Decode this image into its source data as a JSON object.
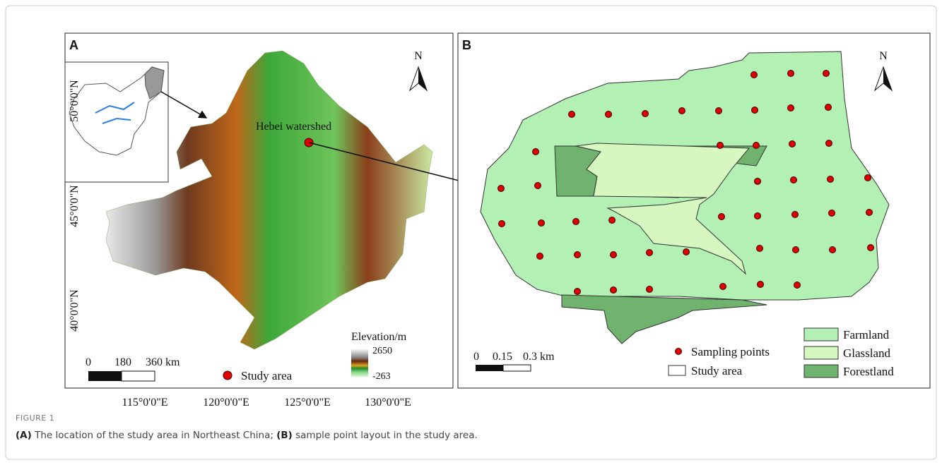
{
  "panel_a": {
    "label": "A",
    "north": "N",
    "latitudes": [
      "50°0'0\"N",
      "45°0'0\"N",
      "40°0'0\"N"
    ],
    "longitudes": [
      "115°0'0\"E",
      "120°0'0\"E",
      "125°0'0\"E",
      "130°0'0\"E"
    ],
    "site_label": "Hebei watershed",
    "scale": [
      "0",
      "180",
      "360 km"
    ],
    "elevation_title": "Elevation/m",
    "elevation_max": "2650",
    "elevation_min": "-263",
    "legend": "Study area"
  },
  "panel_b": {
    "label": "B",
    "north": "N",
    "scale": [
      "0",
      "0.15",
      "0.3 km"
    ],
    "legend": [
      "Sampling points",
      "Study area",
      "Farmland",
      "Glassland",
      "Forestland"
    ]
  },
  "caption": {
    "figure": "FIGURE 1",
    "parts": [
      {
        "tag": "(A)",
        "text": " The location of the study area in Northeast China; "
      },
      {
        "tag": "(B)",
        "text": " sample point layout in the study area."
      }
    ]
  }
}
